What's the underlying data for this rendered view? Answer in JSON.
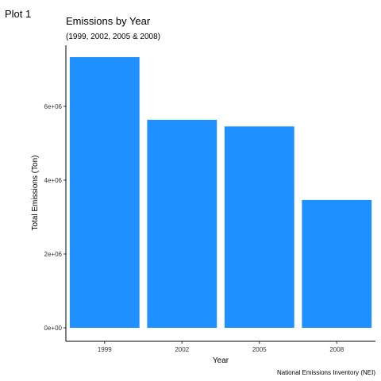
{
  "plot_tag": "Plot 1",
  "chart_data": {
    "type": "bar",
    "title": "Emissions by Year",
    "subtitle": "(1999, 2002, 2005 & 2008)",
    "xlabel": "Year",
    "ylabel": "Total Emissions (Ton)",
    "caption": "National Emissions Inventory (NEI)",
    "categories": [
      "1999",
      "2002",
      "2005",
      "2008"
    ],
    "values": [
      7332967,
      5635780,
      5454703,
      3464206
    ],
    "ylim": [
      0,
      7700000
    ],
    "yticks": [
      0,
      2000000,
      4000000,
      6000000
    ],
    "ytick_labels": [
      "0e+00",
      "2e+06",
      "4e+06",
      "6e+06"
    ],
    "bar_color": "#1E90FF",
    "grid": false
  }
}
